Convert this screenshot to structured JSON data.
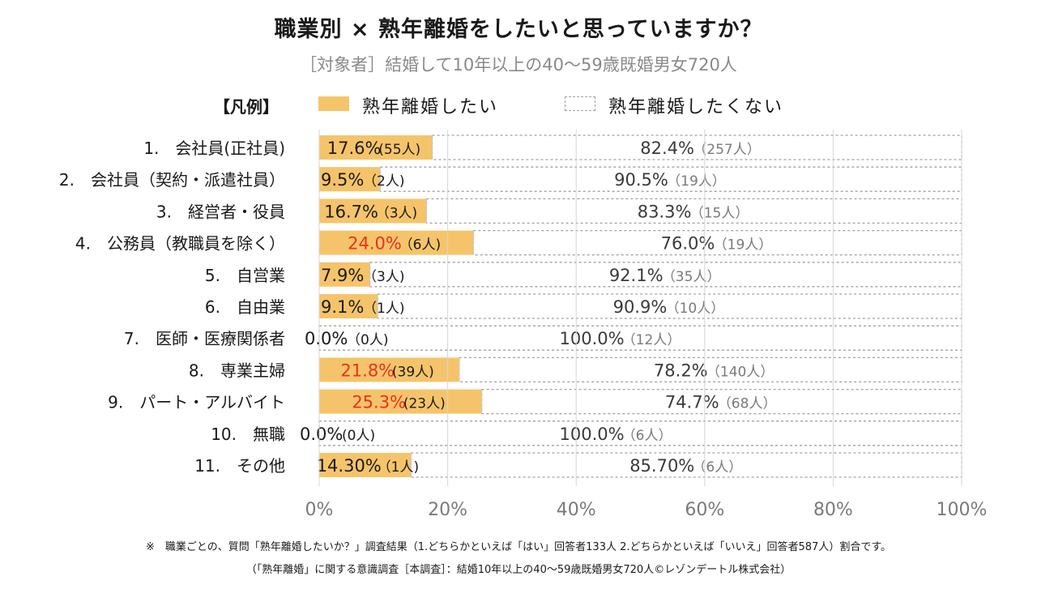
{
  "chart_data": {
    "type": "bar",
    "title": "職業別 × 熟年離婚をしたいと思っていますか？",
    "subtitle": "［対象者］結婚して10年以上の40〜59歳既婚男女720人",
    "legend": {
      "title": "【凡例】",
      "yes": "熟年離婚したい",
      "no": "熟年離婚したくない",
      "placement": "top"
    },
    "xlim": [
      0,
      100
    ],
    "xticks": [
      "0%",
      "20%",
      "40%",
      "60%",
      "80%",
      "100%"
    ],
    "categories": [
      "1.　会社員(正社員)",
      "2.　会社員（契約・派遣社員）",
      "3.　経営者・役員",
      "4.　公務員（教職員を除く）",
      "5.　自営業",
      "6.　自由業",
      "7.　医師・医療関係者",
      "8.　専業主婦",
      "9.　パート・アルバイト",
      "10.　無職",
      "11.　その他"
    ],
    "series": [
      {
        "name": "熟年離婚したい",
        "color": "#f5c46a",
        "values": [
          17.6,
          9.5,
          16.7,
          24.0,
          7.9,
          9.1,
          0.0,
          21.8,
          25.3,
          0.0,
          14.3
        ],
        "labels": [
          "17.6%",
          "9.5%",
          "16.7%",
          "24.0%",
          "7.9%",
          "9.1%",
          "0.0%",
          "21.8%",
          "25.3%",
          "0.0%",
          "14.30%"
        ],
        "counts": [
          "(55人)",
          "（2人)",
          "（3人)",
          "（6人)",
          "（3人)",
          "（1人)",
          "（0人)",
          "(39人)",
          "(23人)",
          "(0人)",
          "（1人)"
        ],
        "highlight": [
          false,
          false,
          false,
          true,
          false,
          false,
          false,
          true,
          true,
          false,
          false
        ],
        "highlight_color": "#e8321e"
      },
      {
        "name": "熟年離婚したくない",
        "values": [
          82.4,
          90.5,
          83.3,
          76.0,
          92.1,
          90.9,
          100.0,
          78.2,
          74.7,
          100.0,
          85.7
        ],
        "labels": [
          "82.4%",
          "90.5%",
          "83.3%",
          "76.0%",
          "92.1%",
          "90.9%",
          "100.0%",
          "78.2%",
          "74.7%",
          "100.0%",
          "85.70%"
        ],
        "counts": [
          "（257人）",
          "（19人）",
          "（15人）",
          "（19人）",
          "（35人）",
          "（10人）",
          "（12人）",
          "（140人）",
          "（68人）",
          "（6人）",
          "（6人）"
        ]
      }
    ]
  },
  "footnote": "※　職業ごとの、質問「熟年離婚したいか？」調査結果（1.どちらかといえば「はい」回答者133人 2.どちらかといえば「いいえ」回答者587人）割合です。",
  "source": "（「熟年離婚」に関する意識調査［本調査］：結婚10年以上の40〜59歳既婚男女720人©レゾンデートル株式会社）"
}
